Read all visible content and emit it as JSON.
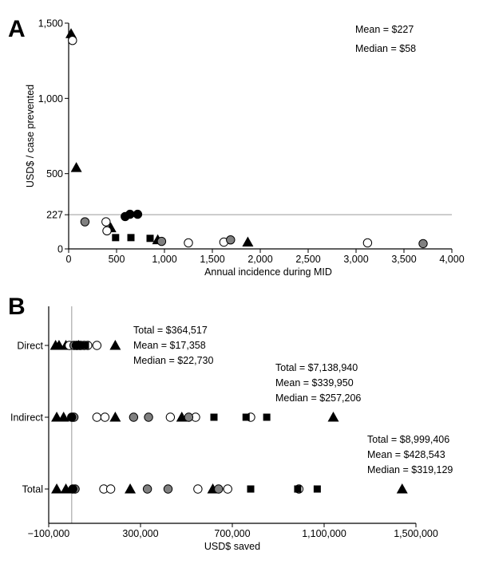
{
  "chart_data": [
    {
      "panel": "A",
      "type": "scatter",
      "xlabel": "Annual incidence during MID",
      "ylabel": "USD$ / case prevented",
      "xlim": [
        0,
        4000
      ],
      "ylim": [
        0,
        1500
      ],
      "x_ticks": [
        "0",
        "500",
        "1,000",
        "1,500",
        "2,000",
        "2,500",
        "3,000",
        "3,500",
        "4,000"
      ],
      "y_ticks": [
        {
          "value": 0,
          "label": "0"
        },
        {
          "value": 227,
          "label": "227"
        },
        {
          "value": 500,
          "label": "500"
        },
        {
          "value": 1000,
          "label": "1,000"
        },
        {
          "value": 1500,
          "label": "1,500"
        }
      ],
      "reference_line": {
        "axis": "y",
        "value": 227,
        "color": "#bbbbbb"
      },
      "annotations": [
        "Mean = $227",
        "Median = $58"
      ],
      "series": [
        {
          "marker": "triangle",
          "fill": "#000000",
          "points": [
            [
              25,
              1430
            ],
            [
              80,
              540
            ],
            [
              440,
              140
            ],
            [
              930,
              60
            ],
            [
              1870,
              45
            ]
          ]
        },
        {
          "marker": "circle-open",
          "fill": "#ffffff",
          "points": [
            [
              40,
              1385
            ],
            [
              390,
              180
            ],
            [
              400,
              120
            ],
            [
              1250,
              40
            ],
            [
              1620,
              45
            ],
            [
              3120,
              40
            ]
          ]
        },
        {
          "marker": "circle-gray",
          "fill": "#808080",
          "points": [
            [
              170,
              180
            ],
            [
              970,
              50
            ],
            [
              1690,
              60
            ],
            [
              3700,
              35
            ]
          ]
        },
        {
          "marker": "circle-black",
          "fill": "#000000",
          "points": [
            [
              590,
              215
            ],
            [
              640,
              230
            ],
            [
              720,
              230
            ]
          ]
        },
        {
          "marker": "square",
          "fill": "#000000",
          "points": [
            [
              490,
              75
            ],
            [
              650,
              75
            ],
            [
              850,
              70
            ]
          ]
        }
      ]
    },
    {
      "panel": "B",
      "type": "scatter",
      "xlabel": "USD$ saved",
      "xlim": [
        -100000,
        1500000
      ],
      "x_ticks": [
        "−100,000",
        "300,000",
        "700,000",
        "1,100,000",
        "1,500,000"
      ],
      "categories": [
        "Direct",
        "Indirect",
        "Total"
      ],
      "reference_line": {
        "axis": "x",
        "value": 0,
        "color": "#bbbbbb"
      },
      "stats": [
        {
          "row": "Direct",
          "total": "Total = $364,517",
          "mean": "Mean = $17,358",
          "median": "Median = $22,730"
        },
        {
          "row": "Indirect",
          "total": "Total = $7,138,940",
          "mean": "Mean = $339,950",
          "median": "Median = $257,206"
        },
        {
          "row": "Total",
          "total": "Total = $8,999,406",
          "mean": "Mean = $428,543",
          "median": "Median = $319,129"
        }
      ],
      "series": [
        {
          "marker": "triangle",
          "fill": "#000000",
          "points": [
            [
              "Direct",
              -70000
            ],
            [
              "Direct",
              -55000
            ],
            [
              "Direct",
              -25000
            ],
            [
              "Direct",
              30000
            ],
            [
              "Direct",
              190000
            ],
            [
              "Indirect",
              -65000
            ],
            [
              "Indirect",
              -35000
            ],
            [
              "Indirect",
              190000
            ],
            [
              "Indirect",
              480000
            ],
            [
              "Indirect",
              1140000
            ],
            [
              "Total",
              -65000
            ],
            [
              "Total",
              -25000
            ],
            [
              "Total",
              255000
            ],
            [
              "Total",
              615000
            ],
            [
              "Total",
              1440000
            ]
          ]
        },
        {
          "marker": "circle-open",
          "fill": "#ffffff",
          "points": [
            [
              "Direct",
              -10000
            ],
            [
              "Direct",
              35000
            ],
            [
              "Direct",
              55000
            ],
            [
              "Direct",
              70000
            ],
            [
              "Direct",
              110000
            ],
            [
              "Indirect",
              110000
            ],
            [
              "Indirect",
              145000
            ],
            [
              "Indirect",
              430000
            ],
            [
              "Indirect",
              540000
            ],
            [
              "Indirect",
              780000
            ],
            [
              "Total",
              140000
            ],
            [
              "Total",
              170000
            ],
            [
              "Total",
              550000
            ],
            [
              "Total",
              680000
            ],
            [
              "Total",
              990000
            ]
          ]
        },
        {
          "marker": "circle-gray",
          "fill": "#808080",
          "points": [
            [
              "Direct",
              10000
            ],
            [
              "Direct",
              40000
            ],
            [
              "Indirect",
              5000
            ],
            [
              "Indirect",
              10000
            ],
            [
              "Indirect",
              270000
            ],
            [
              "Indirect",
              335000
            ],
            [
              "Indirect",
              510000
            ],
            [
              "Total",
              15000
            ],
            [
              "Total",
              330000
            ],
            [
              "Total",
              420000
            ],
            [
              "Total",
              640000
            ]
          ]
        },
        {
          "marker": "circle-black",
          "fill": "#000000",
          "points": [
            [
              "Direct",
              20000
            ],
            [
              "Direct",
              25000
            ],
            [
              "Indirect",
              0
            ],
            [
              "Total",
              5000
            ]
          ]
        },
        {
          "marker": "square",
          "fill": "#000000",
          "points": [
            [
              "Direct",
              45000
            ],
            [
              "Direct",
              60000
            ],
            [
              "Indirect",
              620000
            ],
            [
              "Indirect",
              760000
            ],
            [
              "Indirect",
              850000
            ],
            [
              "Total",
              780000
            ],
            [
              "Total",
              985000
            ],
            [
              "Total",
              1070000
            ]
          ]
        }
      ]
    }
  ],
  "panels": {
    "a_label": "A",
    "b_label": "B"
  }
}
